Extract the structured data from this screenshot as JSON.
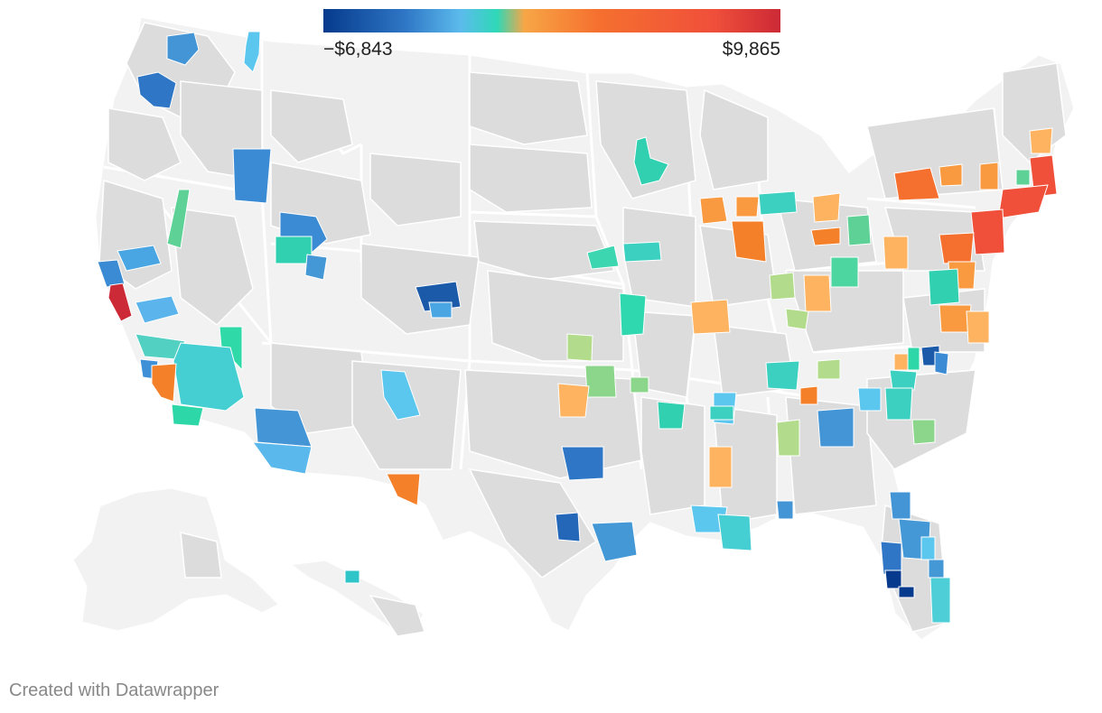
{
  "legend": {
    "min_label": "−$6,843",
    "max_label": "$9,865",
    "min_value": -6843,
    "max_value": 9865,
    "gradient_stops": [
      "#063a8c",
      "#2f77c6",
      "#5cbbec",
      "#2fd8b8",
      "#f7a646",
      "#f5702f",
      "#f0503a",
      "#cc2a36"
    ]
  },
  "credit": "Created with Datawrapper",
  "colors": {
    "no_data": "#dcdcdc",
    "land": "#f2f2f2",
    "border": "#ffffff"
  }
}
